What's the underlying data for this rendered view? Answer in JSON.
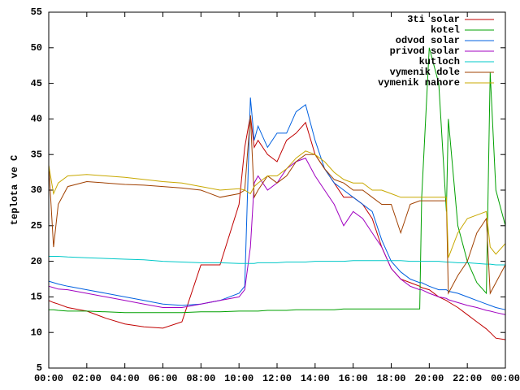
{
  "chart_data": {
    "type": "line",
    "y_label": "teplota ve C",
    "x": [
      0,
      0.25,
      0.5,
      1,
      2,
      3,
      4,
      5,
      6,
      7,
      8,
      9,
      10,
      10.3,
      10.6,
      10.8,
      11,
      11.5,
      12,
      12.5,
      13,
      13.5,
      14,
      14.5,
      15,
      15.5,
      16,
      16.5,
      17,
      17.5,
      18,
      18.5,
      19,
      19.5,
      19.6,
      20,
      20.5,
      20.9,
      21,
      21.5,
      22,
      22.5,
      23,
      23.2,
      23.5,
      24
    ],
    "series": [
      {
        "name": "3ti solar",
        "color": "#c00000",
        "values": [
          14.5,
          14.2,
          14,
          13.5,
          13,
          12,
          11.2,
          10.8,
          10.6,
          11.5,
          19.5,
          19.5,
          28,
          36,
          40.5,
          36,
          37,
          35,
          34,
          37,
          38,
          39.5,
          35,
          33,
          31,
          29,
          29,
          28,
          26,
          22,
          19,
          17.5,
          17,
          16.5,
          16.3,
          16,
          15,
          14.5,
          14.3,
          13.5,
          12.5,
          11.5,
          10.5,
          10,
          9.2,
          9
        ]
      },
      {
        "name": "kotel",
        "color": "#00a000",
        "values": [
          13.2,
          13.2,
          13.1,
          13,
          13,
          12.9,
          12.8,
          12.8,
          12.8,
          12.8,
          12.9,
          12.9,
          13,
          13,
          13,
          13,
          13,
          13.1,
          13.1,
          13.1,
          13.2,
          13.2,
          13.2,
          13.2,
          13.2,
          13.3,
          13.3,
          13.3,
          13.3,
          13.3,
          13.3,
          13.3,
          13.3,
          13.3,
          29,
          50,
          45,
          27,
          40,
          25,
          20,
          17,
          15.5,
          46.5,
          30,
          25
        ]
      },
      {
        "name": "odvod solar",
        "color": "#0060e0",
        "values": [
          17.2,
          17,
          16.8,
          16.5,
          16,
          15.5,
          15,
          14.5,
          14,
          13.8,
          14,
          14.5,
          15.5,
          16.5,
          43,
          37,
          39,
          36,
          38,
          38,
          41,
          42,
          37,
          33,
          31,
          30,
          29,
          28,
          27,
          23,
          20,
          18.5,
          17.5,
          17,
          17,
          16.5,
          16,
          16,
          15.8,
          15.5,
          15,
          14.5,
          14,
          13.8,
          13.5,
          13.2
        ]
      },
      {
        "name": "privod solar",
        "color": "#a000c0",
        "values": [
          16.5,
          16.3,
          16.1,
          16,
          15.5,
          15,
          14.5,
          14,
          13.5,
          13.5,
          14,
          14.5,
          15,
          16,
          22,
          31,
          32,
          30,
          31,
          33,
          34,
          34.5,
          32,
          30,
          28,
          25,
          27,
          26,
          24,
          22,
          19,
          17.5,
          16.5,
          16,
          16,
          15.5,
          15,
          14.8,
          14.6,
          14.2,
          13.8,
          13.5,
          13.1,
          13,
          12.8,
          12.5
        ]
      },
      {
        "name": "kutloch",
        "color": "#00c8c8",
        "values": [
          20.7,
          20.7,
          20.7,
          20.6,
          20.5,
          20.4,
          20.3,
          20.2,
          20,
          19.9,
          19.8,
          19.8,
          19.7,
          19.7,
          19.7,
          19.7,
          19.8,
          19.8,
          19.8,
          19.9,
          19.9,
          19.9,
          20,
          20,
          20,
          20,
          20.1,
          20.1,
          20.1,
          20.1,
          20.1,
          20.1,
          20,
          20,
          20,
          20,
          20,
          19.9,
          19.9,
          19.8,
          19.8,
          19.7,
          19.6,
          19.6,
          19.5,
          19.5
        ]
      },
      {
        "name": "vymenik dole",
        "color": "#a04000",
        "values": [
          33.5,
          22,
          28,
          30.5,
          31.2,
          31,
          30.8,
          30.7,
          30.5,
          30.3,
          30,
          29,
          29.5,
          30,
          40.5,
          29,
          30,
          32,
          31,
          32,
          34,
          35,
          35,
          33,
          31.5,
          31,
          30,
          30,
          29,
          28,
          28,
          24,
          28,
          28.5,
          28.5,
          28.5,
          28.5,
          28.5,
          15.5,
          18,
          20,
          24,
          26,
          15.5,
          17,
          19.5
        ]
      },
      {
        "name": "vymenik nahore",
        "color": "#c8a800",
        "values": [
          33.5,
          29.5,
          31,
          32,
          32.2,
          32,
          31.8,
          31.5,
          31.2,
          31,
          30.5,
          30,
          30.2,
          30,
          29.5,
          30.5,
          31,
          32,
          32,
          33,
          34.5,
          35.5,
          35,
          34,
          32.5,
          31.5,
          31,
          31,
          30,
          30,
          29.5,
          29,
          29,
          29,
          29,
          29,
          29,
          29,
          20.5,
          24,
          26,
          26.5,
          27,
          22,
          21,
          22.5
        ]
      }
    ],
    "xlim": [
      0,
      24
    ],
    "xticks": [
      {
        "value": 0,
        "label": "00:00"
      },
      {
        "value": 2,
        "label": "02:00"
      },
      {
        "value": 4,
        "label": "04:00"
      },
      {
        "value": 6,
        "label": "06:00"
      },
      {
        "value": 8,
        "label": "08:00"
      },
      {
        "value": 10,
        "label": "10:00"
      },
      {
        "value": 12,
        "label": "12:00"
      },
      {
        "value": 14,
        "label": "14:00"
      },
      {
        "value": 16,
        "label": "16:00"
      },
      {
        "value": 18,
        "label": "18:00"
      },
      {
        "value": 20,
        "label": "20:00"
      },
      {
        "value": 22,
        "label": "22:00"
      },
      {
        "value": 24,
        "label": "00:00"
      }
    ],
    "ylim": [
      5,
      55
    ],
    "yticks": [
      5,
      10,
      15,
      20,
      25,
      30,
      35,
      40,
      45,
      50,
      55
    ],
    "legend": "top-right",
    "grid": false
  }
}
